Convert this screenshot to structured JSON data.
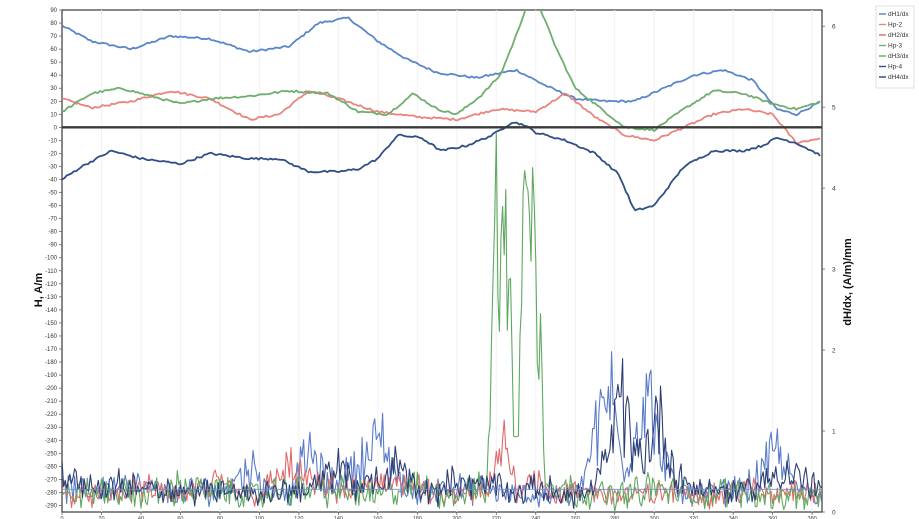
{
  "chart_data": {
    "type": "line",
    "ylabel": "H, A/m",
    "ylabel_right": "dH/dx, (A/m)/mm",
    "y_ticks": [
      "90",
      "80",
      "70",
      "60",
      "50",
      "40",
      "30",
      "20",
      "10",
      "0",
      "-10",
      "-20",
      "-30",
      "-40",
      "-50",
      "-60",
      "-70",
      "-80",
      "-90",
      "-100",
      "-110",
      "-120",
      "-130",
      "-140",
      "-150",
      "-160",
      "-170",
      "-180",
      "-190",
      "-200",
      "-210",
      "-220",
      "-230",
      "-240",
      "-250",
      "-260",
      "-270",
      "-280",
      "-290"
    ],
    "y_ticks_right": [
      "6",
      "5",
      "4",
      "3",
      "2",
      "1",
      "0"
    ],
    "x_ticks": [
      "0",
      "20",
      "40",
      "60",
      "80",
      "100",
      "120",
      "140",
      "160",
      "180",
      "200",
      "220",
      "240",
      "260",
      "280",
      "300",
      "320",
      "340",
      "360",
      "380"
    ],
    "ylim": [
      -295,
      90
    ],
    "ylim_right": [
      0,
      6.2
    ],
    "xlim": [
      0,
      385
    ],
    "legend": [
      "dH1/dx",
      "Hp-2",
      "dH2/dx",
      "Hp-3",
      "dH3/dx",
      "Hp-4",
      "dH4/dx"
    ],
    "series": [
      {
        "id": "hp1",
        "legend_index": null,
        "color": "#5b86c9",
        "axis": "left",
        "noise": 0,
        "x": [
          0,
          15,
          35,
          55,
          75,
          95,
          115,
          130,
          145,
          160,
          175,
          190,
          210,
          230,
          245,
          260,
          275,
          290,
          305,
          320,
          335,
          350,
          362,
          372,
          385
        ],
        "y": [
          78,
          66,
          60,
          70,
          68,
          58,
          62,
          80,
          84,
          66,
          52,
          42,
          38,
          44,
          32,
          22,
          20,
          20,
          30,
          40,
          44,
          36,
          14,
          10,
          20
        ]
      },
      {
        "id": "hp2",
        "legend_index": 1,
        "color": "#e8857e",
        "axis": "left",
        "noise": 0,
        "x": [
          0,
          15,
          35,
          55,
          75,
          95,
          110,
          125,
          140,
          160,
          180,
          200,
          220,
          240,
          255,
          270,
          285,
          300,
          315,
          330,
          345,
          360,
          372,
          385
        ],
        "y": [
          22,
          15,
          20,
          28,
          22,
          6,
          10,
          28,
          22,
          12,
          8,
          6,
          14,
          12,
          26,
          8,
          -6,
          -10,
          0,
          10,
          14,
          10,
          -12,
          -8
        ]
      },
      {
        "id": "hp3",
        "legend_index": 3,
        "color": "#6fae6f",
        "axis": "left",
        "noise": 0,
        "x": [
          0,
          15,
          30,
          45,
          60,
          75,
          95,
          115,
          135,
          150,
          165,
          178,
          190,
          200,
          212,
          222,
          230,
          236,
          242,
          250,
          260,
          270,
          285,
          300,
          315,
          330,
          345,
          360,
          372,
          385
        ],
        "y": [
          12,
          26,
          30,
          24,
          18,
          22,
          24,
          28,
          26,
          12,
          10,
          26,
          14,
          10,
          24,
          40,
          70,
          96,
          92,
          62,
          30,
          18,
          0,
          -2,
          14,
          28,
          26,
          18,
          14,
          20
        ]
      },
      {
        "id": "hp4",
        "legend_index": 5,
        "color": "#2f4f86",
        "axis": "left",
        "noise": 0,
        "x": [
          0,
          10,
          25,
          40,
          60,
          75,
          95,
          110,
          125,
          140,
          150,
          160,
          170,
          182,
          192,
          205,
          218,
          228,
          234,
          240,
          255,
          270,
          282,
          290,
          300,
          315,
          330,
          345,
          355,
          362,
          372,
          385
        ],
        "y": [
          -40,
          -30,
          -18,
          -24,
          -28,
          -20,
          -24,
          -24,
          -34,
          -34,
          -32,
          -24,
          -6,
          -8,
          -18,
          -14,
          -6,
          4,
          2,
          -4,
          -10,
          -20,
          -36,
          -64,
          -60,
          -30,
          -18,
          -18,
          -14,
          -8,
          -12,
          -22
        ]
      },
      {
        "id": "dh1",
        "legend_index": 0,
        "color": "#5b7cc9",
        "axis": "right",
        "noise": 0.09,
        "x": [
          0,
          15,
          30,
          45,
          60,
          70,
          80,
          95,
          105,
          115,
          125,
          135,
          150,
          162,
          170,
          180,
          195,
          205,
          215,
          225,
          235,
          245,
          255,
          262,
          270,
          278,
          284,
          290,
          296,
          302,
          310,
          320,
          335,
          350,
          362,
          372,
          385
        ],
        "y": [
          0.3,
          0.25,
          0.35,
          0.28,
          0.2,
          0.3,
          0.25,
          0.55,
          0.3,
          0.2,
          0.75,
          0.3,
          0.6,
          0.9,
          0.4,
          0.2,
          0.35,
          0.25,
          0.3,
          0.2,
          0.2,
          0.2,
          0.2,
          0.3,
          0.9,
          1.5,
          0.6,
          0.9,
          1.6,
          0.8,
          0.3,
          0.2,
          0.25,
          0.35,
          0.75,
          0.3,
          0.2
        ]
      },
      {
        "id": "dh2",
        "legend_index": 2,
        "color": "#e06a6a",
        "axis": "right",
        "noise": 0.09,
        "x": [
          0,
          20,
          40,
          60,
          80,
          100,
          115,
          130,
          150,
          170,
          190,
          210,
          218,
          224,
          230,
          238,
          250,
          270,
          290,
          310,
          330,
          345,
          360,
          372,
          385
        ],
        "y": [
          0.25,
          0.2,
          0.3,
          0.2,
          0.35,
          0.2,
          0.55,
          0.3,
          0.25,
          0.4,
          0.2,
          0.2,
          0.35,
          0.85,
          0.3,
          0.5,
          0.2,
          0.25,
          0.2,
          0.25,
          0.2,
          0.3,
          0.2,
          0.3,
          0.2
        ]
      },
      {
        "id": "dh3",
        "legend_index": 4,
        "color": "#5fa860",
        "axis": "right",
        "noise": 0.12,
        "x": [
          0,
          20,
          40,
          60,
          80,
          100,
          120,
          140,
          160,
          180,
          200,
          215,
          218,
          221,
          224,
          227,
          230,
          233,
          236,
          239,
          242,
          245,
          250,
          260,
          280,
          300,
          320,
          340,
          360,
          385
        ],
        "y": [
          0.2,
          0.25,
          0.2,
          0.3,
          0.25,
          0.2,
          0.3,
          0.25,
          0.2,
          0.3,
          0.2,
          0.3,
          2.2,
          4.2,
          3.2,
          2.4,
          0.5,
          2.8,
          4.4,
          3.0,
          2.0,
          0.5,
          0.3,
          0.25,
          0.2,
          0.3,
          0.2,
          0.25,
          0.2,
          0.2
        ]
      },
      {
        "id": "dh4",
        "legend_index": 6,
        "color": "#2c3f73",
        "axis": "right",
        "noise": 0.08,
        "x": [
          0,
          20,
          40,
          60,
          80,
          100,
          115,
          125,
          140,
          150,
          160,
          170,
          180,
          190,
          200,
          210,
          220,
          230,
          240,
          250,
          260,
          270,
          278,
          284,
          290,
          296,
          302,
          310,
          320,
          335,
          350,
          365,
          385
        ],
        "y": [
          0.4,
          0.3,
          0.35,
          0.25,
          0.3,
          0.2,
          0.3,
          0.25,
          0.55,
          0.3,
          0.35,
          0.6,
          0.3,
          0.25,
          0.4,
          0.3,
          0.35,
          0.2,
          0.3,
          0.25,
          0.2,
          0.3,
          0.8,
          1.4,
          0.6,
          0.8,
          1.2,
          0.5,
          0.3,
          0.25,
          0.3,
          0.5,
          0.3
        ]
      },
      {
        "id": "baseline",
        "legend_index": null,
        "color": "#6c8fd0",
        "axis": "right",
        "noise": 0,
        "x": [
          0,
          385
        ],
        "y": [
          0.28,
          0.28
        ]
      }
    ]
  }
}
